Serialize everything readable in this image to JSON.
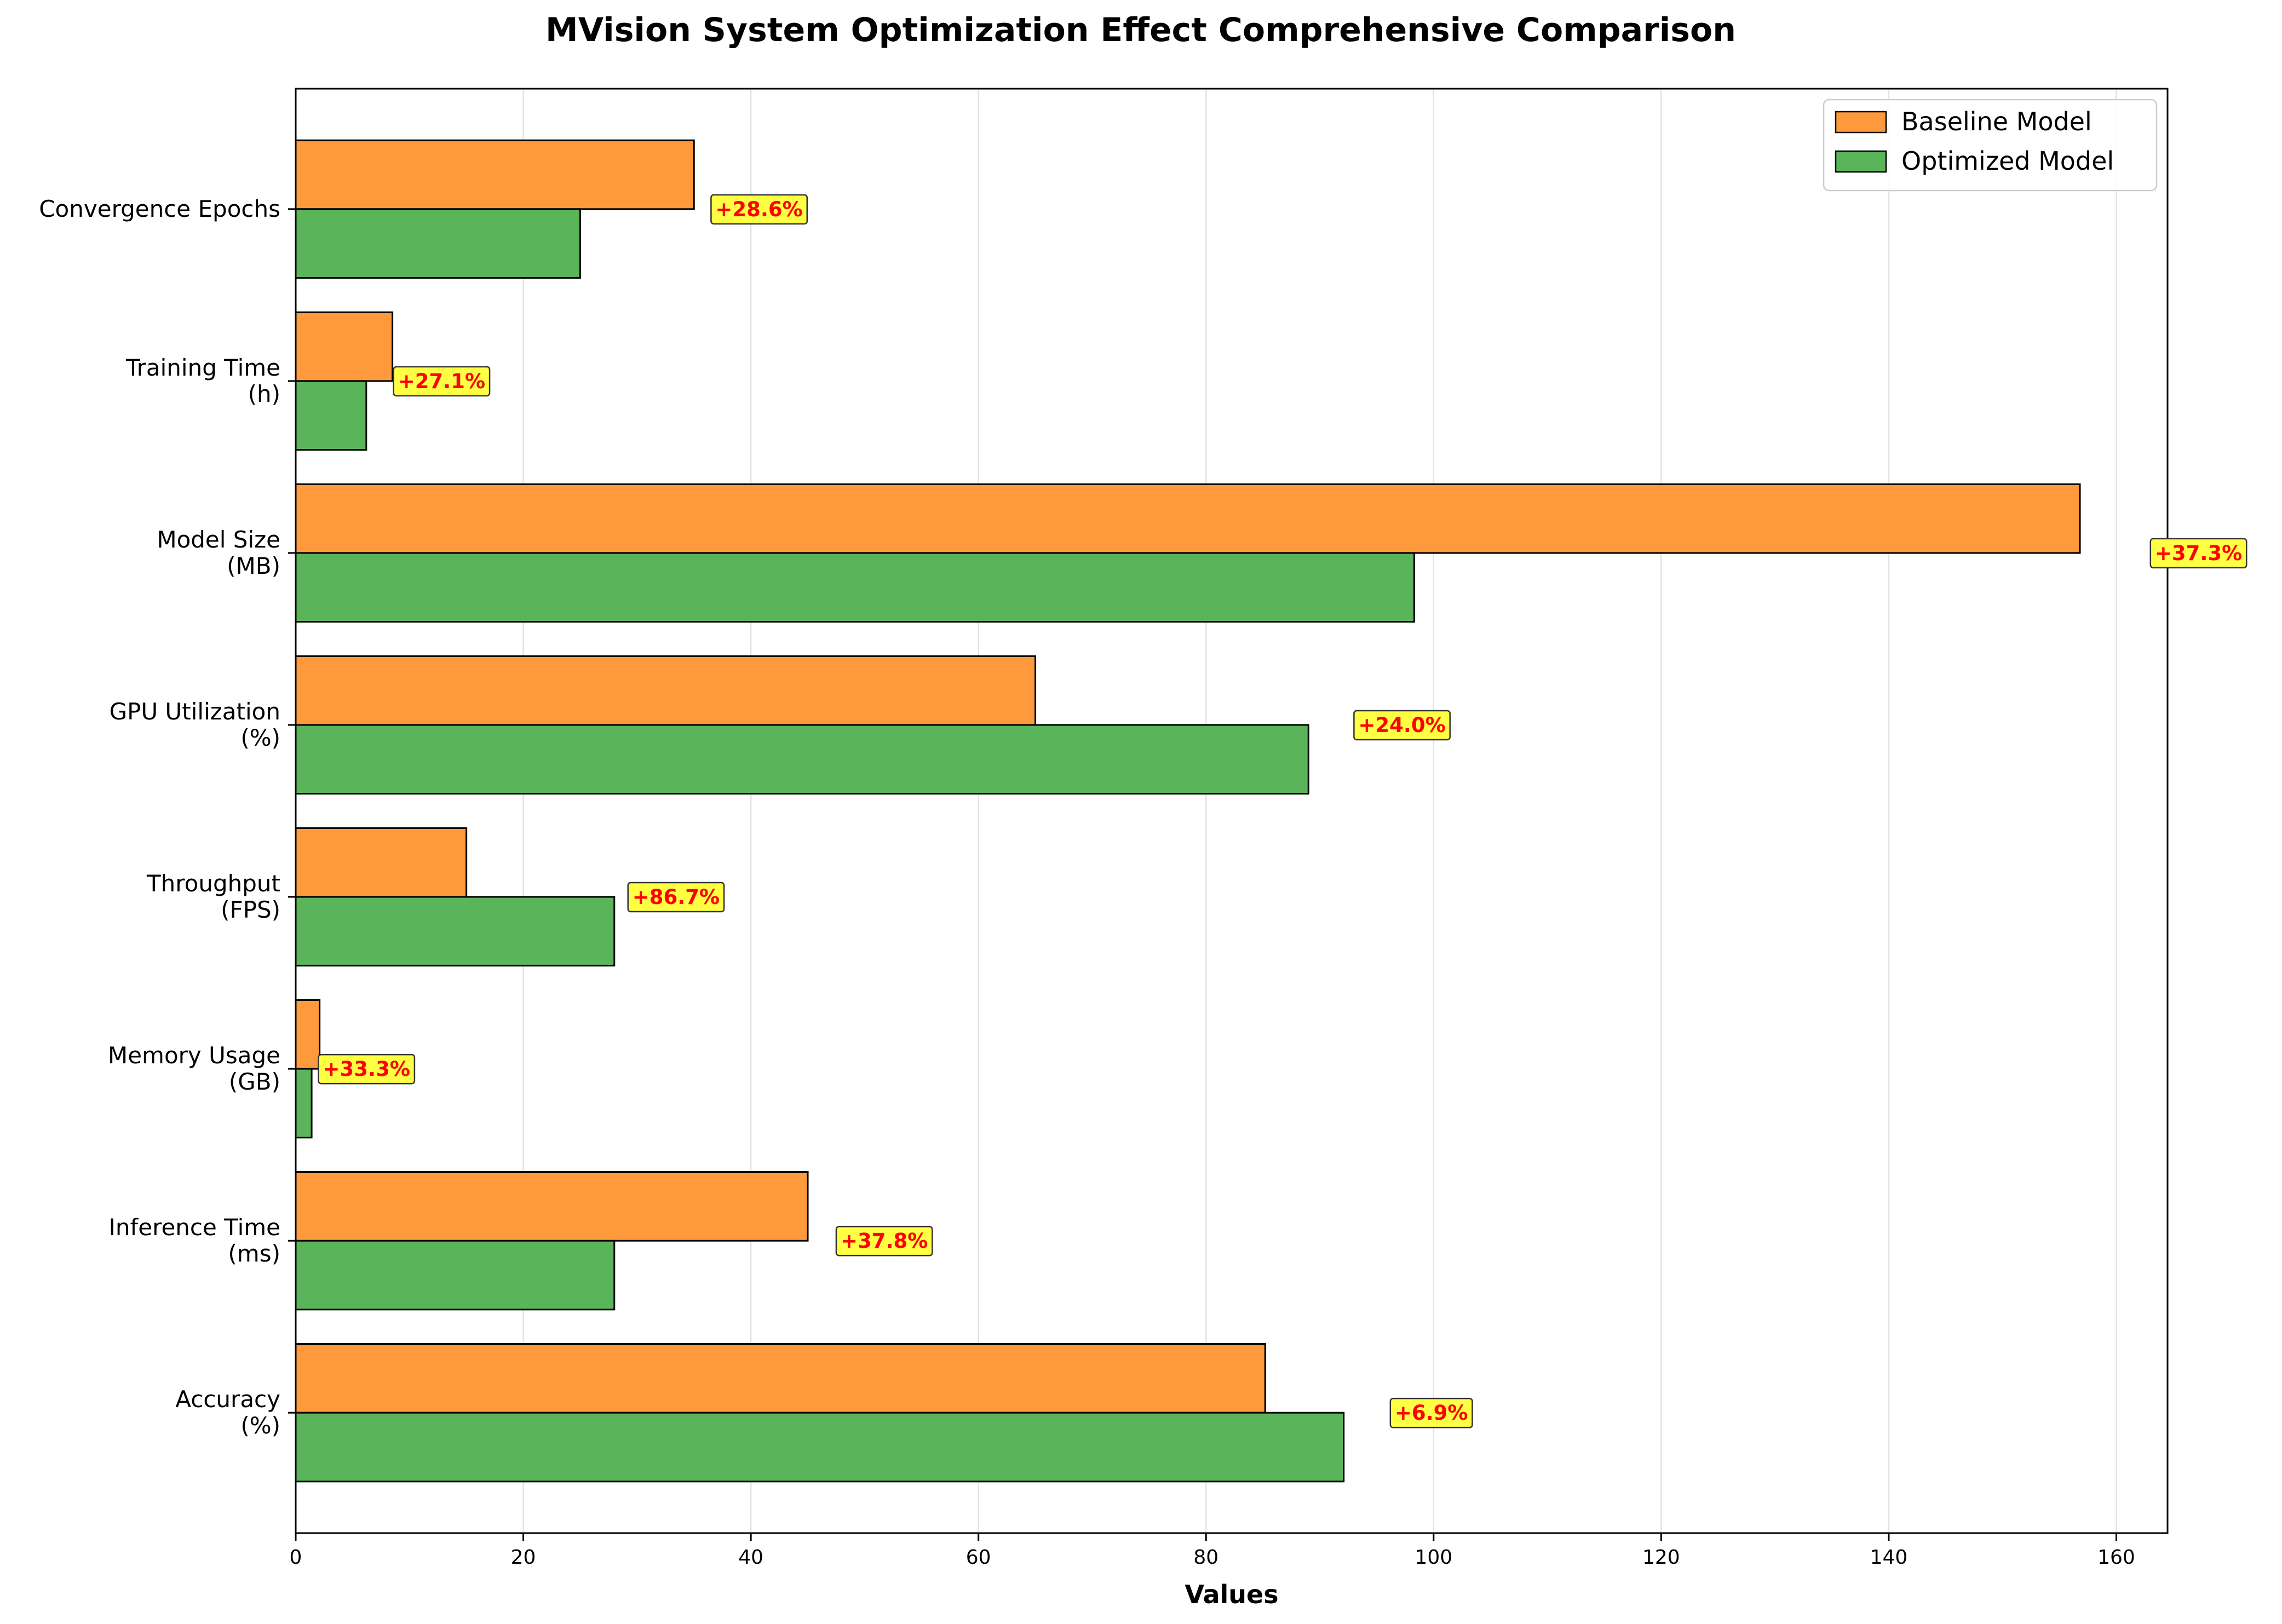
{
  "chart_data": {
    "type": "bar",
    "orientation": "horizontal",
    "title": "MVision System Optimization Effect Comprehensive Comparison",
    "xlabel": "Values",
    "ylabel": "",
    "xlim": [
      0,
      164.5
    ],
    "xticks": [
      0,
      20,
      40,
      60,
      80,
      100,
      120,
      140,
      160
    ],
    "grid": "x",
    "legend_position": "top-right",
    "categories": [
      "Accuracy\n(%)",
      "Inference Time\n(ms)",
      "Memory Usage\n(GB)",
      "Throughput\n(FPS)",
      "GPU Utilization\n(%)",
      "Model Size\n(MB)",
      "Training Time\n(h)",
      "Convergence Epochs"
    ],
    "series": [
      {
        "name": "Baseline Model",
        "color": "#ff9a3c",
        "values": [
          85.2,
          45,
          2.1,
          15,
          65,
          156.8,
          8.5,
          35
        ]
      },
      {
        "name": "Optimized Model",
        "color": "#5ab55a",
        "values": [
          92.1,
          28,
          1.4,
          28,
          89,
          98.3,
          6.2,
          25
        ]
      }
    ],
    "annotations": [
      {
        "category_index": 0,
        "text": "+6.9%",
        "x": 96.2
      },
      {
        "category_index": 1,
        "text": "+37.8%",
        "x": 47.5
      },
      {
        "category_index": 2,
        "text": "+33.3%",
        "x": 2.0
      },
      {
        "category_index": 3,
        "text": "+86.7%",
        "x": 29.2
      },
      {
        "category_index": 4,
        "text": "+24.0%",
        "x": 93.0
      },
      {
        "category_index": 5,
        "text": "+37.3%",
        "x": 163.0
      },
      {
        "category_index": 6,
        "text": "+27.1%",
        "x": 8.6
      },
      {
        "category_index": 7,
        "text": "+28.6%",
        "x": 36.5
      }
    ],
    "annotation_text_color": "#ff0000",
    "annotation_box_color": "#ffff44"
  }
}
